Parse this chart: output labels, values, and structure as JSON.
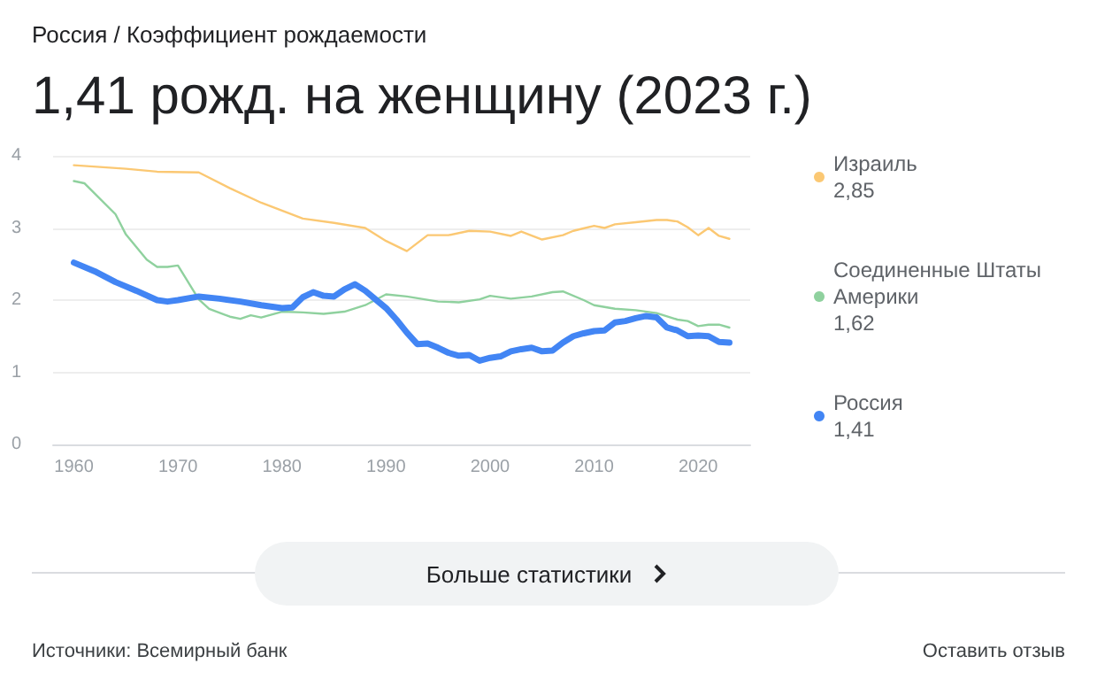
{
  "chart_data": {
    "type": "line",
    "subtitle": "Россия / Коэффициент рождаемости",
    "title": "1,41 рожд. на женщину (2023 г.)",
    "xlim": [
      1958,
      2025
    ],
    "xticks": [
      1960,
      1970,
      1980,
      1990,
      2000,
      2010,
      2020
    ],
    "ylim": [
      0,
      4
    ],
    "yticks": [
      0,
      1,
      2,
      3,
      4
    ],
    "grid": "y",
    "legend": "right",
    "marker": "none",
    "line_style": "solid",
    "series": [
      {
        "name": "Израиль",
        "color": "#fbc873",
        "x": [
          1960,
          1965,
          1968,
          1972,
          1975,
          1978,
          1982,
          1985,
          1988,
          1990,
          1992,
          1994,
          1996,
          1998,
          2000,
          2002,
          2003,
          2005,
          2007,
          2008,
          2010,
          2011,
          2012,
          2014,
          2016,
          2017,
          2018,
          2019,
          2020,
          2021,
          2022,
          2023
        ],
        "values": [
          3.87,
          3.82,
          3.78,
          3.77,
          3.55,
          3.35,
          3.13,
          3.07,
          3.0,
          2.82,
          2.68,
          2.9,
          2.9,
          2.96,
          2.95,
          2.89,
          2.95,
          2.84,
          2.9,
          2.96,
          3.03,
          3.0,
          3.05,
          3.08,
          3.11,
          3.11,
          3.09,
          3.01,
          2.9,
          3.0,
          2.89,
          2.85
        ]
      },
      {
        "name": "Соединенные Штаты Америки",
        "color": "#8fd19e",
        "x": [
          1960,
          1961,
          1964,
          1965,
          1967,
          1968,
          1969,
          1970,
          1972,
          1973,
          1975,
          1976,
          1977,
          1978,
          1980,
          1982,
          1984,
          1986,
          1988,
          1990,
          1992,
          1995,
          1997,
          1999,
          2000,
          2002,
          2004,
          2006,
          2007,
          2009,
          2010,
          2012,
          2014,
          2016,
          2018,
          2019,
          2020,
          2021,
          2022,
          2023
        ],
        "values": [
          3.65,
          3.62,
          3.19,
          2.91,
          2.56,
          2.46,
          2.46,
          2.48,
          2.01,
          1.88,
          1.77,
          1.74,
          1.79,
          1.76,
          1.84,
          1.83,
          1.81,
          1.84,
          1.93,
          2.08,
          2.05,
          1.98,
          1.97,
          2.01,
          2.06,
          2.02,
          2.05,
          2.11,
          2.12,
          2.0,
          1.93,
          1.88,
          1.86,
          1.82,
          1.73,
          1.71,
          1.64,
          1.66,
          1.66,
          1.62
        ]
      },
      {
        "name": "Россия",
        "color": "#4285f4",
        "x": [
          1960,
          1962,
          1964,
          1966,
          1968,
          1969,
          1970,
          1972,
          1974,
          1976,
          1978,
          1980,
          1981,
          1982,
          1983,
          1984,
          1985,
          1986,
          1987,
          1988,
          1989,
          1990,
          1991,
          1992,
          1993,
          1994,
          1995,
          1996,
          1997,
          1998,
          1999,
          2000,
          2001,
          2002,
          2003,
          2004,
          2005,
          2006,
          2007,
          2008,
          2009,
          2010,
          2011,
          2012,
          2013,
          2014,
          2015,
          2016,
          2017,
          2018,
          2019,
          2020,
          2021,
          2022,
          2023
        ],
        "values": [
          2.52,
          2.4,
          2.25,
          2.13,
          2.0,
          1.98,
          2.0,
          2.05,
          2.02,
          1.98,
          1.93,
          1.89,
          1.9,
          2.04,
          2.11,
          2.06,
          2.05,
          2.15,
          2.22,
          2.13,
          2.01,
          1.89,
          1.73,
          1.55,
          1.39,
          1.4,
          1.34,
          1.27,
          1.23,
          1.24,
          1.16,
          1.2,
          1.22,
          1.29,
          1.32,
          1.34,
          1.29,
          1.3,
          1.41,
          1.5,
          1.54,
          1.57,
          1.58,
          1.69,
          1.71,
          1.75,
          1.78,
          1.76,
          1.62,
          1.58,
          1.5,
          1.51,
          1.5,
          1.42,
          1.41
        ]
      }
    ],
    "annotations": [
      "2,85",
      "1,62",
      "1,41",
      "Больше статистики",
      "Источники: Всемирный банк",
      "Оставить отзыв"
    ]
  }
}
